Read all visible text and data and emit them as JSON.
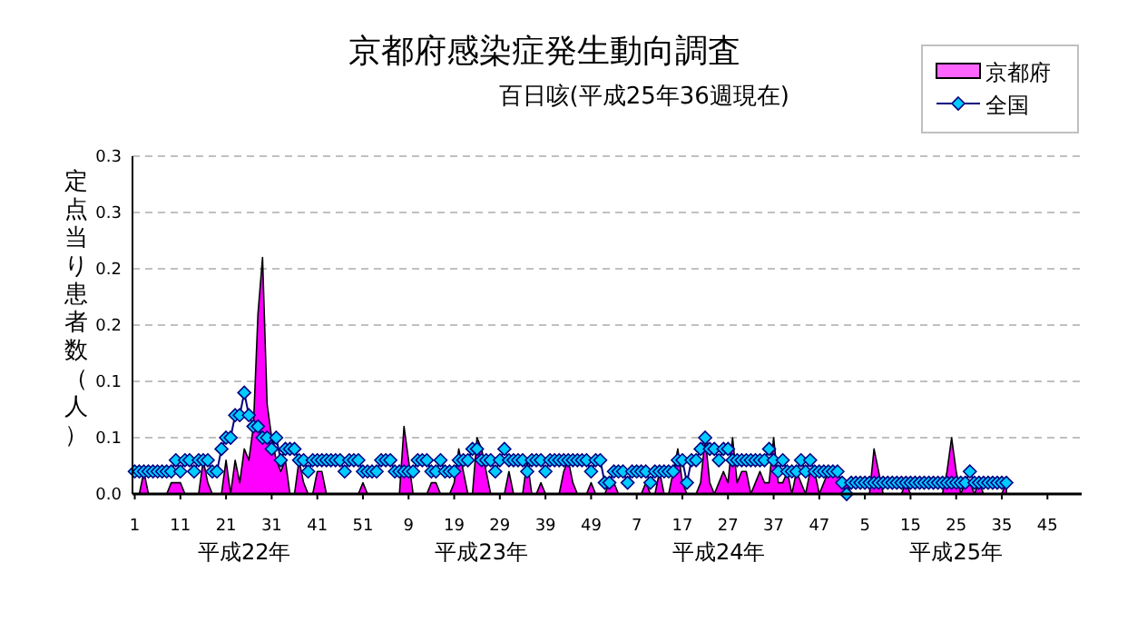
{
  "chart_data": {
    "type": "area",
    "title": "京都府感染症発生動向調査",
    "subtitle": "百日咳(平成25年36週現在)",
    "ylabel": "定点当り患者数（人）",
    "categories": [
      "1",
      null,
      null,
      null,
      null,
      null,
      null,
      null,
      null,
      null,
      "11",
      null,
      null,
      null,
      null,
      null,
      null,
      null,
      null,
      null,
      "21",
      null,
      null,
      null,
      null,
      null,
      null,
      null,
      null,
      null,
      "31",
      null,
      null,
      null,
      null,
      null,
      null,
      null,
      null,
      null,
      "41",
      null,
      null,
      null,
      null,
      null,
      null,
      null,
      null,
      null,
      "51",
      null,
      null,
      null,
      null,
      null,
      null,
      null,
      null,
      null,
      "9",
      null,
      null,
      null,
      null,
      null,
      null,
      null,
      null,
      null,
      "19",
      null,
      null,
      null,
      null,
      null,
      null,
      null,
      null,
      null,
      "29",
      null,
      null,
      null,
      null,
      null,
      null,
      null,
      null,
      null,
      "39",
      null,
      null,
      null,
      null,
      null,
      null,
      null,
      null,
      null,
      "49",
      null,
      null,
      null,
      null,
      null,
      null,
      null,
      null,
      null,
      "7",
      null,
      null,
      null,
      null,
      null,
      null,
      null,
      null,
      null,
      "17",
      null,
      null,
      null,
      null,
      null,
      null,
      null,
      null,
      null,
      "27",
      null,
      null,
      null,
      null,
      null,
      null,
      null,
      null,
      null,
      "37",
      null,
      null,
      null,
      null,
      null,
      null,
      null,
      null,
      null,
      "47",
      null,
      null,
      null,
      null,
      null,
      null,
      null,
      null,
      null,
      "5",
      null,
      null,
      null,
      null,
      null,
      null,
      null,
      null,
      null,
      "15",
      null,
      null,
      null,
      null,
      null,
      null,
      null,
      null,
      null,
      "25",
      null,
      null,
      null,
      null,
      null,
      null,
      null,
      null,
      null,
      "35",
      null,
      null,
      null,
      null,
      null,
      null,
      null,
      null,
      null,
      "45",
      null,
      null,
      null,
      null,
      null,
      null,
      null
    ],
    "series": [
      {
        "name": "京都府",
        "color": "#ff00ff",
        "values": [
          0,
          0,
          0.02,
          0,
          0,
          0,
          0,
          0,
          0.01,
          0.01,
          0.01,
          0,
          0,
          0,
          0,
          0.03,
          0.01,
          0,
          0,
          0,
          0.03,
          0,
          0.03,
          0.01,
          0.04,
          0.03,
          0.06,
          0.16,
          0.21,
          0.08,
          0.05,
          0.03,
          0.02,
          0.03,
          0,
          0,
          0.03,
          0.01,
          0,
          0,
          0.02,
          0.02,
          0,
          0,
          0,
          0,
          0,
          0,
          0,
          0,
          0.01,
          0,
          0,
          0,
          0,
          0,
          0,
          0,
          0,
          0.06,
          0.03,
          0,
          0,
          0,
          0,
          0.01,
          0.01,
          0,
          0,
          0,
          0.01,
          0.04,
          0.02,
          0,
          0,
          0.05,
          0.04,
          0.02,
          0,
          0,
          0,
          0,
          0.02,
          0,
          0,
          0,
          0.03,
          0,
          0,
          0.01,
          0,
          0,
          0,
          0,
          0.02,
          0.03,
          0.01,
          0,
          0,
          0,
          0.01,
          0,
          0,
          0,
          0.01,
          0.01,
          0,
          0,
          0,
          0,
          0,
          0,
          0.01,
          0,
          0,
          0.02,
          0,
          0,
          0.02,
          0.04,
          0.01,
          0,
          0,
          0,
          0.01,
          0.05,
          0.01,
          0,
          0.01,
          0.02,
          0.01,
          0.05,
          0.01,
          0.02,
          0.02,
          0,
          0.01,
          0.02,
          0.01,
          0.01,
          0.05,
          0.01,
          0.01,
          0.02,
          0,
          0.02,
          0.01,
          0,
          0.02,
          0.02,
          0,
          0.01,
          0.02,
          0.02,
          0.02,
          0.01,
          0.01,
          0,
          0,
          0,
          0,
          0,
          0.04,
          0.02,
          0,
          0,
          0,
          0,
          0,
          0.01,
          0,
          0,
          0,
          0,
          0,
          0,
          0,
          0,
          0.02,
          0.05,
          0.02,
          0,
          0.01,
          0.01,
          0,
          0.01,
          0,
          0,
          0,
          0,
          0,
          0.01,
          null,
          null,
          null,
          null,
          null,
          null,
          null,
          null,
          null,
          null,
          null,
          null,
          null,
          null,
          null,
          null
        ]
      },
      {
        "name": "全国",
        "type": "line",
        "marker": "diamond",
        "color": "#000080",
        "values": [
          0.02,
          0.02,
          0.02,
          0.02,
          0.02,
          0.02,
          0.02,
          0.02,
          0.02,
          0.03,
          0.02,
          0.03,
          0.03,
          0.02,
          0.03,
          0.03,
          0.03,
          0.02,
          0.02,
          0.04,
          0.05,
          0.05,
          0.07,
          0.07,
          0.09,
          0.07,
          0.06,
          0.06,
          0.05,
          0.05,
          0.04,
          0.05,
          0.03,
          0.04,
          0.04,
          0.04,
          0.03,
          0.03,
          0.02,
          0.03,
          0.03,
          0.03,
          0.03,
          0.03,
          0.03,
          0.03,
          0.02,
          0.03,
          0.03,
          0.03,
          0.02,
          0.02,
          0.02,
          0.02,
          0.03,
          0.03,
          0.03,
          0.02,
          0.02,
          0.02,
          0.02,
          0.02,
          0.03,
          0.03,
          0.03,
          0.02,
          0.02,
          0.03,
          0.02,
          0.02,
          0.02,
          0.03,
          0.03,
          0.03,
          0.04,
          0.04,
          0.03,
          0.03,
          0.03,
          0.02,
          0.03,
          0.04,
          0.03,
          0.03,
          0.03,
          0.03,
          0.02,
          0.03,
          0.03,
          0.03,
          0.02,
          0.03,
          0.03,
          0.03,
          0.03,
          0.03,
          0.03,
          0.03,
          0.03,
          0.03,
          0.02,
          0.03,
          0.03,
          0.01,
          0.01,
          0.02,
          0.02,
          0.02,
          0.01,
          0.02,
          0.02,
          0.02,
          0.02,
          0.01,
          0.02,
          0.02,
          0.02,
          0.02,
          0.02,
          0.03,
          0.03,
          0.01,
          0.03,
          0.03,
          0.04,
          0.05,
          0.04,
          0.04,
          0.03,
          0.04,
          0.04,
          0.03,
          0.03,
          0.03,
          0.03,
          0.03,
          0.03,
          0.03,
          0.03,
          0.04,
          0.03,
          0.02,
          0.03,
          0.02,
          0.02,
          0.02,
          0.03,
          0.02,
          0.03,
          0.02,
          0.02,
          0.02,
          0.02,
          0.02,
          0.02,
          0.01,
          0,
          0.01,
          0.01,
          0.01,
          0.01,
          0.01,
          0.01,
          0.01,
          0.01,
          0.01,
          0.01,
          0.01,
          0.01,
          0.01,
          0.01,
          0.01,
          0.01,
          0.01,
          0.01,
          0.01,
          0.01,
          0.01,
          0.01,
          0.01,
          0.01,
          0.01,
          0.01,
          0.02,
          0.01,
          0.01,
          0.01,
          0.01,
          0.01,
          0.01,
          0.01,
          0.01,
          null,
          null,
          null,
          null,
          null,
          null,
          null,
          null,
          null,
          null,
          null,
          null,
          null,
          null,
          null,
          null
        ]
      }
    ],
    "ylim": [
      0,
      0.3
    ],
    "yticks": [
      {
        "value": 0,
        "label": "0.0"
      },
      {
        "value": 0.05,
        "label": "0.1"
      },
      {
        "value": 0.1,
        "label": "0.1"
      },
      {
        "value": 0.15,
        "label": "0.2"
      },
      {
        "value": 0.2,
        "label": "0.2"
      },
      {
        "value": 0.25,
        "label": "0.3"
      },
      {
        "value": 0.3,
        "label": "0.3"
      }
    ],
    "grid": "y",
    "legend": "top right",
    "annotations": [
      "平成22年",
      "平成23年",
      "平成24年",
      "平成25年"
    ]
  }
}
